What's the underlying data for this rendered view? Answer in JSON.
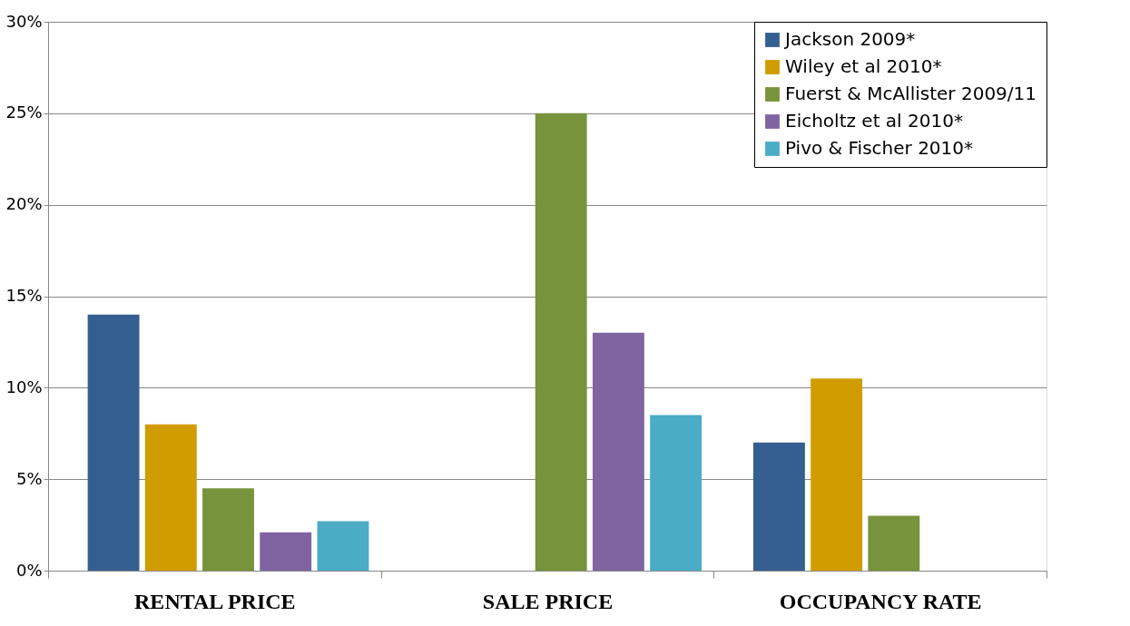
{
  "chart_data": {
    "type": "bar",
    "categories": [
      "RENTAL PRICE",
      "SALE PRICE",
      "OCCUPANCY RATE"
    ],
    "series": [
      {
        "name": "Jackson 2009*",
        "color": "#365f91",
        "values": [
          14,
          null,
          7
        ]
      },
      {
        "name": "Wiley et al 2010*",
        "color": "#d09c00",
        "values": [
          8,
          null,
          10.5
        ]
      },
      {
        "name": "Fuerst & McAllister 2009/11",
        "color": "#77933c",
        "values": [
          4.5,
          25,
          3
        ]
      },
      {
        "name": "Eicholtz et al 2010*",
        "color": "#8064a2",
        "values": [
          2.1,
          13,
          null
        ]
      },
      {
        "name": "Pivo & Fischer 2010*",
        "color": "#4bacc6",
        "values": [
          2.7,
          8.5,
          null
        ]
      }
    ],
    "ylim": [
      0,
      30
    ],
    "yticks": [
      {
        "value": 0,
        "label": "0%"
      },
      {
        "value": 5,
        "label": "5%"
      },
      {
        "value": 10,
        "label": "10%"
      },
      {
        "value": 15,
        "label": "15%"
      },
      {
        "value": 20,
        "label": "20%"
      },
      {
        "value": 25,
        "label": "25%"
      },
      {
        "value": 30,
        "label": "30%"
      }
    ],
    "grid": "y",
    "legend": "top right"
  }
}
